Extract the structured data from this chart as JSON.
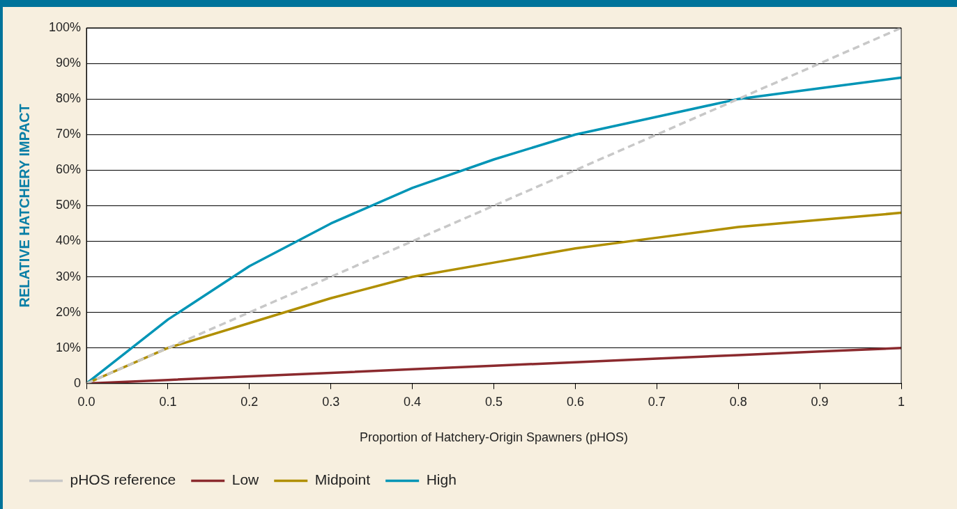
{
  "chart_data": {
    "type": "line",
    "xlabel": "Proportion of Hatchery-Origin Spawners (pHOS)",
    "ylabel": "RELATIVE HATCHERY IMPACT",
    "x": [
      0,
      0.1,
      0.2,
      0.3,
      0.4,
      0.5,
      0.6,
      0.7,
      0.8,
      0.9,
      1
    ],
    "xlim": [
      0,
      1
    ],
    "xticks": [
      {
        "value": 0,
        "label": "0.0"
      },
      {
        "value": 0.1,
        "label": "0.1"
      },
      {
        "value": 0.2,
        "label": "0.2"
      },
      {
        "value": 0.3,
        "label": "0.3"
      },
      {
        "value": 0.4,
        "label": "0.4"
      },
      {
        "value": 0.5,
        "label": "0.5"
      },
      {
        "value": 0.6,
        "label": "0.6"
      },
      {
        "value": 0.7,
        "label": "0.7"
      },
      {
        "value": 0.8,
        "label": "0.8"
      },
      {
        "value": 0.9,
        "label": "0.9"
      },
      {
        "value": 1,
        "label": "1"
      }
    ],
    "ylim": [
      0,
      100
    ],
    "yticks": [
      {
        "value": 0,
        "label": "0"
      },
      {
        "value": 10,
        "label": "10%"
      },
      {
        "value": 20,
        "label": "20%"
      },
      {
        "value": 30,
        "label": "30%"
      },
      {
        "value": 40,
        "label": "40%"
      },
      {
        "value": 50,
        "label": "50%"
      },
      {
        "value": 60,
        "label": "60%"
      },
      {
        "value": 70,
        "label": "70%"
      },
      {
        "value": 80,
        "label": "80%"
      },
      {
        "value": 90,
        "label": "90%"
      },
      {
        "value": 100,
        "label": "100%"
      }
    ],
    "series": [
      {
        "name": "pHOS reference",
        "color": "#c8c8c8",
        "line_style": "dashed",
        "values": [
          0,
          10,
          20,
          30,
          40,
          50,
          60,
          70,
          80,
          90,
          100
        ]
      },
      {
        "name": "Low",
        "color": "#8b2a2e",
        "line_style": "solid",
        "values": [
          0,
          1,
          2,
          3,
          4,
          5,
          6,
          7,
          8,
          9,
          10
        ]
      },
      {
        "name": "Midpoint",
        "color": "#b08f00",
        "line_style": "solid",
        "values": [
          0,
          10,
          17,
          24,
          30,
          34,
          38,
          41,
          44,
          46,
          48
        ]
      },
      {
        "name": "High",
        "color": "#0095b6",
        "line_style": "solid",
        "values": [
          0,
          18,
          33,
          45,
          55,
          63,
          70,
          75,
          80,
          83,
          86
        ]
      }
    ],
    "grid": "y",
    "legend": "bottom",
    "marker": "none"
  }
}
